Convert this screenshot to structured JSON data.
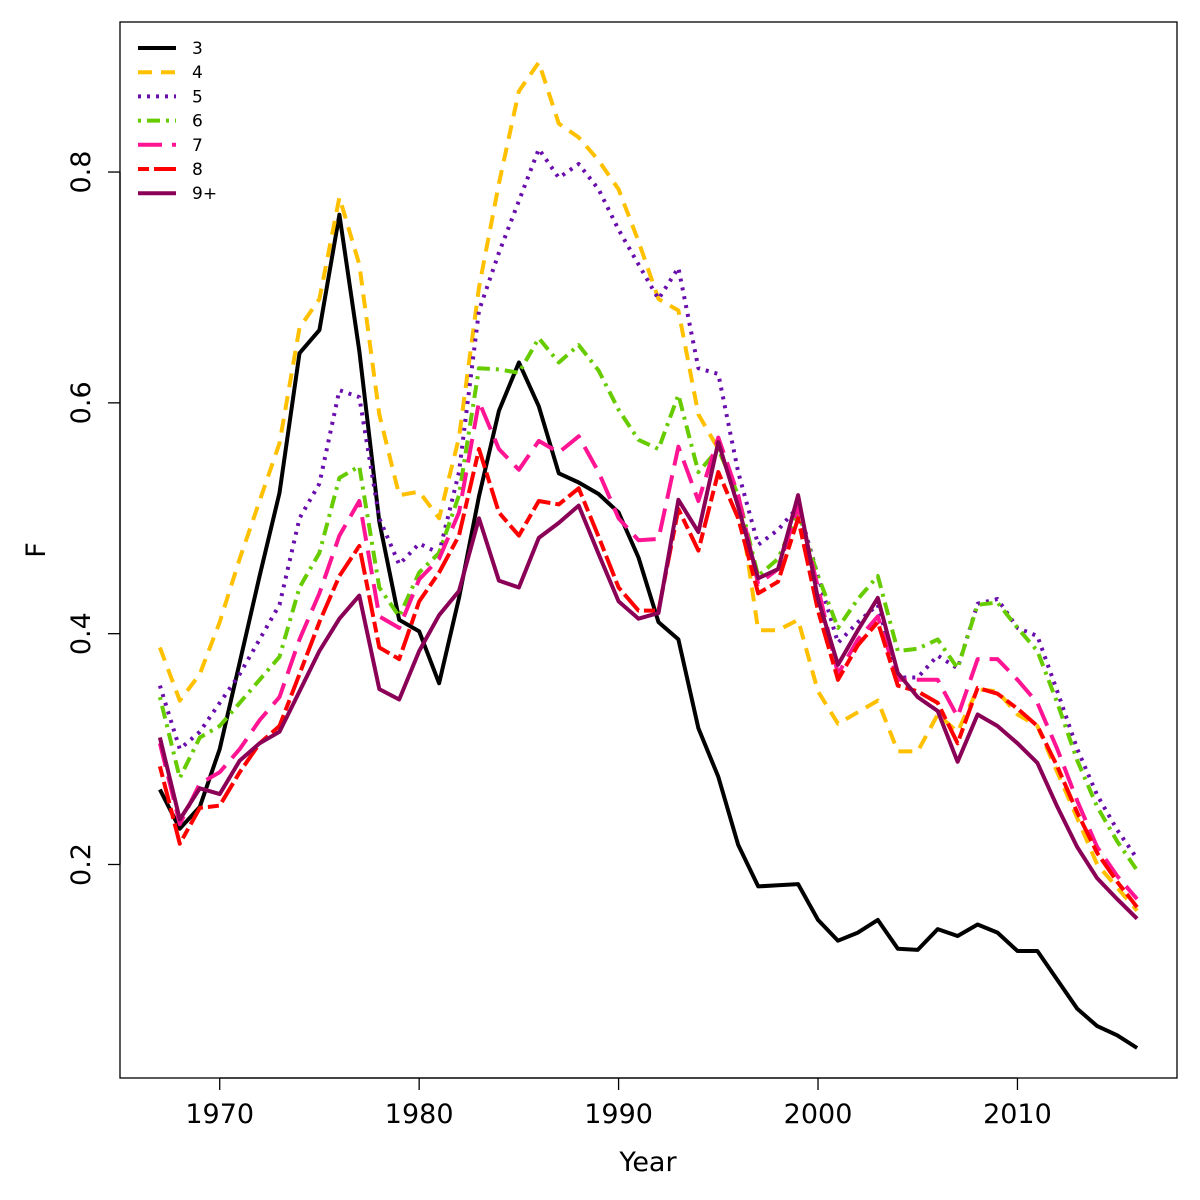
{
  "chart_data": {
    "type": "line",
    "title": "",
    "xlabel": "Year",
    "ylabel": "F",
    "xlim": [
      1965,
      2018
    ],
    "ylim": [
      0.015,
      0.93
    ],
    "xticks": [
      1970,
      1980,
      1990,
      2000,
      2010
    ],
    "yticks": [
      0.2,
      0.4,
      0.6,
      0.8
    ],
    "ytick_labels": [
      "0.2",
      "0.4",
      "0.6",
      "0.8"
    ],
    "grid": false,
    "legend_position": "top-left",
    "x": [
      1967,
      1968,
      1969,
      1970,
      1971,
      1972,
      1973,
      1974,
      1975,
      1976,
      1977,
      1978,
      1979,
      1980,
      1981,
      1982,
      1983,
      1984,
      1985,
      1986,
      1987,
      1988,
      1989,
      1990,
      1991,
      1992,
      1993,
      1994,
      1995,
      1996,
      1997,
      1998,
      1999,
      2000,
      2001,
      2002,
      2003,
      2004,
      2005,
      2006,
      2007,
      2008,
      2009,
      2010,
      2011,
      2012,
      2013,
      2014,
      2015,
      2016
    ],
    "series": [
      {
        "name": "3",
        "color": "#000000",
        "dash": "solid",
        "values": [
          0.265,
          0.231,
          0.25,
          0.3,
          0.375,
          0.45,
          0.522,
          0.643,
          0.663,
          0.763,
          0.645,
          0.497,
          0.412,
          0.402,
          0.357,
          0.431,
          0.519,
          0.593,
          0.635,
          0.597,
          0.539,
          0.531,
          0.521,
          0.505,
          0.466,
          0.41,
          0.395,
          0.318,
          0.276,
          0.217,
          0.181,
          0.182,
          0.183,
          0.152,
          0.134,
          0.141,
          0.152,
          0.127,
          0.126,
          0.144,
          0.138,
          0.148,
          0.141,
          0.125,
          0.125,
          0.1,
          0.075,
          0.06,
          0.052,
          0.041
        ]
      },
      {
        "name": "4",
        "color": "#FFC000",
        "dash": "dash",
        "values": [
          0.388,
          0.342,
          0.365,
          0.41,
          0.465,
          0.515,
          0.565,
          0.665,
          0.69,
          0.778,
          0.72,
          0.59,
          0.52,
          0.523,
          0.5,
          0.57,
          0.7,
          0.79,
          0.87,
          0.895,
          0.842,
          0.83,
          0.81,
          0.785,
          0.74,
          0.69,
          0.68,
          0.59,
          0.56,
          0.52,
          0.403,
          0.403,
          0.412,
          0.35,
          0.322,
          0.332,
          0.342,
          0.298,
          0.298,
          0.33,
          0.315,
          0.352,
          0.35,
          0.33,
          0.32,
          0.28,
          0.24,
          0.2,
          0.18,
          0.16
        ]
      },
      {
        "name": "5",
        "color": "#6A0DAD",
        "dash": "dot",
        "values": [
          0.355,
          0.3,
          0.315,
          0.34,
          0.365,
          0.395,
          0.425,
          0.5,
          0.53,
          0.611,
          0.605,
          0.5,
          0.46,
          0.478,
          0.47,
          0.54,
          0.68,
          0.73,
          0.775,
          0.82,
          0.795,
          0.807,
          0.785,
          0.75,
          0.72,
          0.69,
          0.717,
          0.63,
          0.625,
          0.54,
          0.477,
          0.49,
          0.51,
          0.45,
          0.392,
          0.41,
          0.425,
          0.362,
          0.362,
          0.381,
          0.37,
          0.426,
          0.43,
          0.405,
          0.398,
          0.35,
          0.3,
          0.26,
          0.23,
          0.205
        ]
      },
      {
        "name": "6",
        "color": "#66CC00",
        "dash": "dashdot",
        "values": [
          0.345,
          0.275,
          0.31,
          0.32,
          0.34,
          0.36,
          0.38,
          0.44,
          0.47,
          0.535,
          0.545,
          0.44,
          0.415,
          0.453,
          0.47,
          0.52,
          0.63,
          0.629,
          0.626,
          0.656,
          0.635,
          0.65,
          0.628,
          0.594,
          0.568,
          0.56,
          0.607,
          0.54,
          0.56,
          0.52,
          0.45,
          0.465,
          0.505,
          0.45,
          0.405,
          0.43,
          0.45,
          0.385,
          0.387,
          0.395,
          0.37,
          0.425,
          0.427,
          0.405,
          0.385,
          0.34,
          0.29,
          0.25,
          0.22,
          0.195
        ]
      },
      {
        "name": "7",
        "color": "#FF1493",
        "dash": "longdash",
        "values": [
          0.305,
          0.235,
          0.27,
          0.28,
          0.3,
          0.325,
          0.345,
          0.395,
          0.435,
          0.485,
          0.515,
          0.415,
          0.405,
          0.447,
          0.465,
          0.505,
          0.601,
          0.56,
          0.542,
          0.567,
          0.557,
          0.571,
          0.54,
          0.5,
          0.481,
          0.482,
          0.562,
          0.515,
          0.57,
          0.52,
          0.443,
          0.456,
          0.51,
          0.44,
          0.365,
          0.395,
          0.415,
          0.36,
          0.36,
          0.36,
          0.328,
          0.378,
          0.378,
          0.36,
          0.34,
          0.3,
          0.255,
          0.215,
          0.19,
          0.17
        ]
      },
      {
        "name": "8",
        "color": "#FF0000",
        "dash": "twodash",
        "values": [
          0.285,
          0.218,
          0.249,
          0.251,
          0.28,
          0.305,
          0.32,
          0.365,
          0.41,
          0.45,
          0.476,
          0.388,
          0.378,
          0.428,
          0.453,
          0.485,
          0.56,
          0.505,
          0.485,
          0.515,
          0.512,
          0.526,
          0.484,
          0.44,
          0.42,
          0.42,
          0.508,
          0.472,
          0.54,
          0.5,
          0.435,
          0.445,
          0.5,
          0.42,
          0.36,
          0.39,
          0.41,
          0.355,
          0.35,
          0.34,
          0.305,
          0.353,
          0.348,
          0.335,
          0.32,
          0.285,
          0.245,
          0.21,
          0.185,
          0.163
        ]
      },
      {
        "name": "9+",
        "color": "#8B0057",
        "dash": "solid",
        "values": [
          0.31,
          0.239,
          0.266,
          0.261,
          0.29,
          0.305,
          0.315,
          0.35,
          0.385,
          0.413,
          0.433,
          0.352,
          0.343,
          0.385,
          0.416,
          0.437,
          0.5,
          0.446,
          0.44,
          0.483,
          0.496,
          0.511,
          0.469,
          0.428,
          0.413,
          0.418,
          0.516,
          0.488,
          0.566,
          0.51,
          0.448,
          0.456,
          0.52,
          0.43,
          0.373,
          0.403,
          0.431,
          0.366,
          0.345,
          0.333,
          0.289,
          0.33,
          0.32,
          0.305,
          0.288,
          0.25,
          0.215,
          0.188,
          0.17,
          0.153
        ]
      }
    ]
  }
}
